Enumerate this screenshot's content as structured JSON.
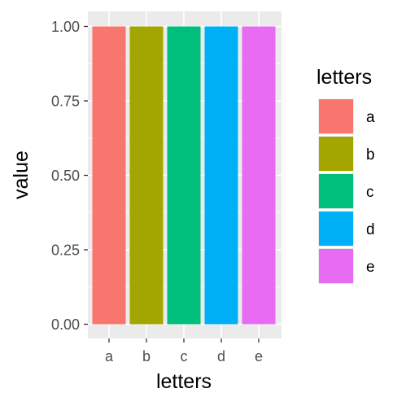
{
  "chart_data": {
    "type": "bar",
    "categories": [
      "a",
      "b",
      "c",
      "d",
      "e"
    ],
    "values": [
      1.0,
      1.0,
      1.0,
      1.0,
      1.0
    ],
    "colors": [
      "#F8766D",
      "#A3A500",
      "#00BF7D",
      "#00B0F6",
      "#E76BF3"
    ],
    "xlabel": "letters",
    "ylabel": "value",
    "ylim": [
      0,
      1
    ],
    "yticks": [
      0.0,
      0.25,
      0.5,
      0.75,
      1.0
    ],
    "ytick_labels": [
      "0.00",
      "0.25",
      "0.50",
      "0.75",
      "1.00"
    ],
    "grid": true,
    "panel_background": "#EBEBEB",
    "legend": {
      "title": "letters",
      "position": "right",
      "entries": [
        "a",
        "b",
        "c",
        "d",
        "e"
      ]
    }
  }
}
